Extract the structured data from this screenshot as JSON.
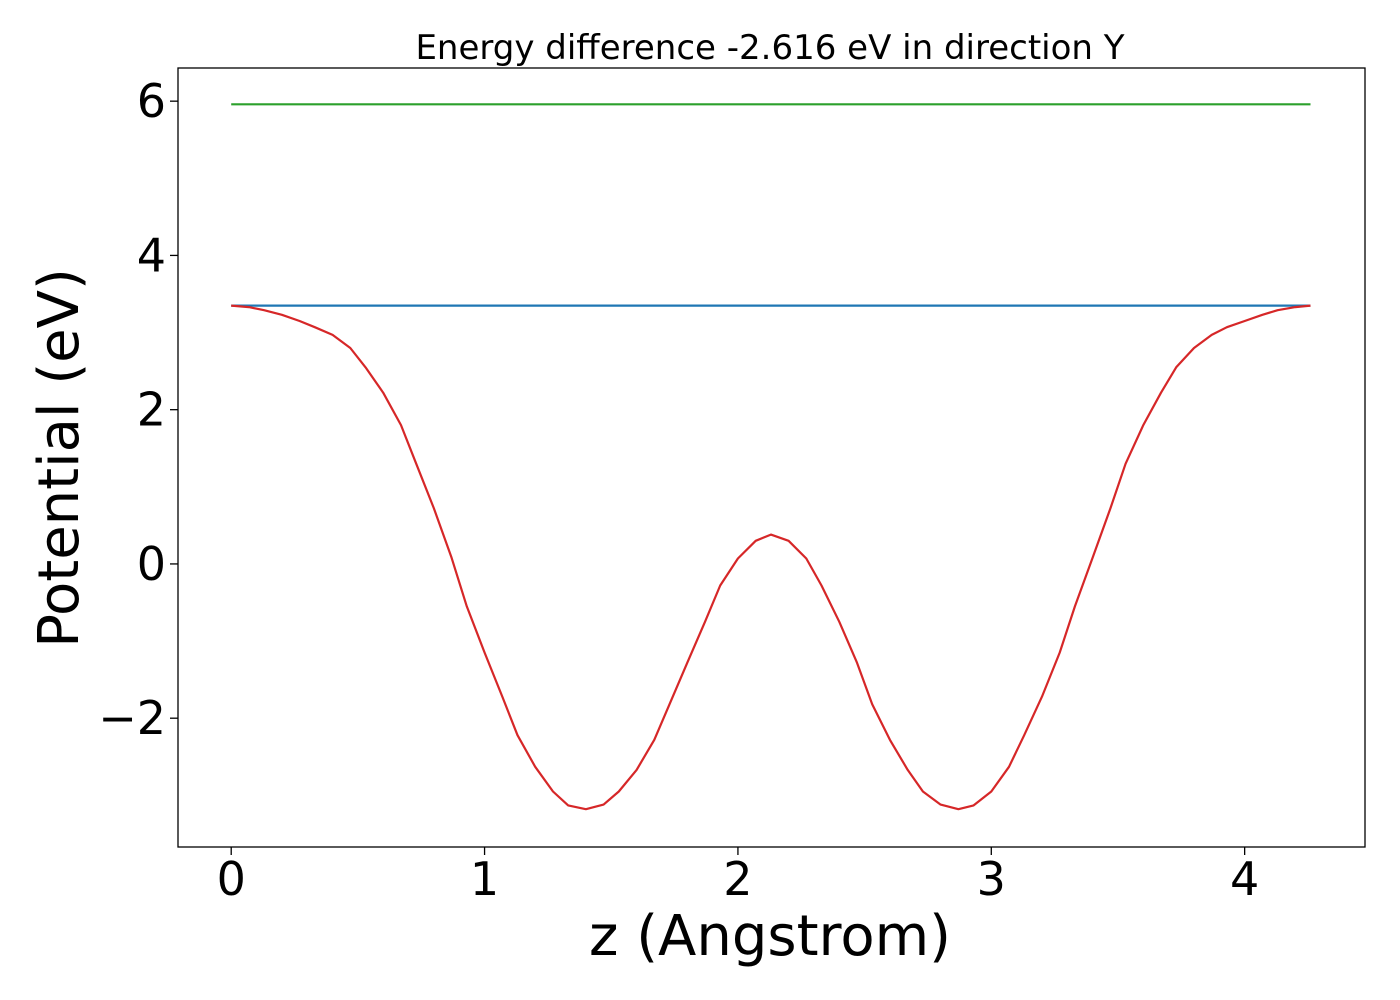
{
  "chart_data": {
    "type": "line",
    "title": "Energy difference -2.616 eV in direction Y",
    "xlabel": "z (Angstrom)",
    "ylabel": "Potential (eV)",
    "xlim": [
      -0.21,
      4.475
    ],
    "ylim": [
      -3.67,
      6.43
    ],
    "xticks": [
      0,
      1,
      2,
      3,
      4
    ],
    "xtick_labels": [
      "0",
      "1",
      "2",
      "3",
      "4"
    ],
    "yticks": [
      -2,
      0,
      2,
      4,
      6
    ],
    "ytick_labels": [
      "−2",
      "0",
      "2",
      "4",
      "6"
    ],
    "grid": false,
    "legend": "none",
    "series": [
      {
        "color": "#2ca02c",
        "x": [
          0,
          4.26
        ],
        "y": [
          5.96,
          5.96
        ]
      },
      {
        "color": "#1f77b4",
        "x": [
          0,
          4.26
        ],
        "y": [
          3.35,
          3.35
        ]
      },
      {
        "color": "#d62728",
        "x": [
          0,
          0.07,
          0.13,
          0.2,
          0.27,
          0.33,
          0.4,
          0.47,
          0.53,
          0.6,
          0.67,
          0.73,
          0.8,
          0.87,
          0.93,
          1.0,
          1.07,
          1.13,
          1.2,
          1.27,
          1.33,
          1.4,
          1.47,
          1.53,
          1.6,
          1.67,
          1.73,
          1.8,
          1.87,
          1.93,
          2.0,
          2.07,
          2.13,
          2.2,
          2.27,
          2.33,
          2.4,
          2.47,
          2.53,
          2.6,
          2.67,
          2.73,
          2.8,
          2.87,
          2.93,
          3.0,
          3.07,
          3.13,
          3.2,
          3.27,
          3.33,
          3.4,
          3.47,
          3.53,
          3.6,
          3.67,
          3.73,
          3.8,
          3.87,
          3.93,
          4.0,
          4.07,
          4.13,
          4.2,
          4.26
        ],
        "y": [
          3.35,
          3.33,
          3.29,
          3.23,
          3.15,
          3.07,
          2.97,
          2.8,
          2.55,
          2.22,
          1.8,
          1.3,
          0.72,
          0.08,
          -0.55,
          -1.15,
          -1.72,
          -2.22,
          -2.63,
          -2.95,
          -3.13,
          -3.18,
          -3.12,
          -2.95,
          -2.67,
          -2.28,
          -1.82,
          -1.28,
          -0.75,
          -0.28,
          0.07,
          0.3,
          0.38,
          0.3,
          0.07,
          -0.28,
          -0.75,
          -1.28,
          -1.82,
          -2.28,
          -2.67,
          -2.95,
          -3.12,
          -3.18,
          -3.13,
          -2.95,
          -2.63,
          -2.22,
          -1.72,
          -1.15,
          -0.55,
          0.08,
          0.72,
          1.3,
          1.8,
          2.22,
          2.55,
          2.8,
          2.97,
          3.07,
          3.15,
          3.23,
          3.29,
          3.33,
          3.35
        ]
      }
    ]
  }
}
